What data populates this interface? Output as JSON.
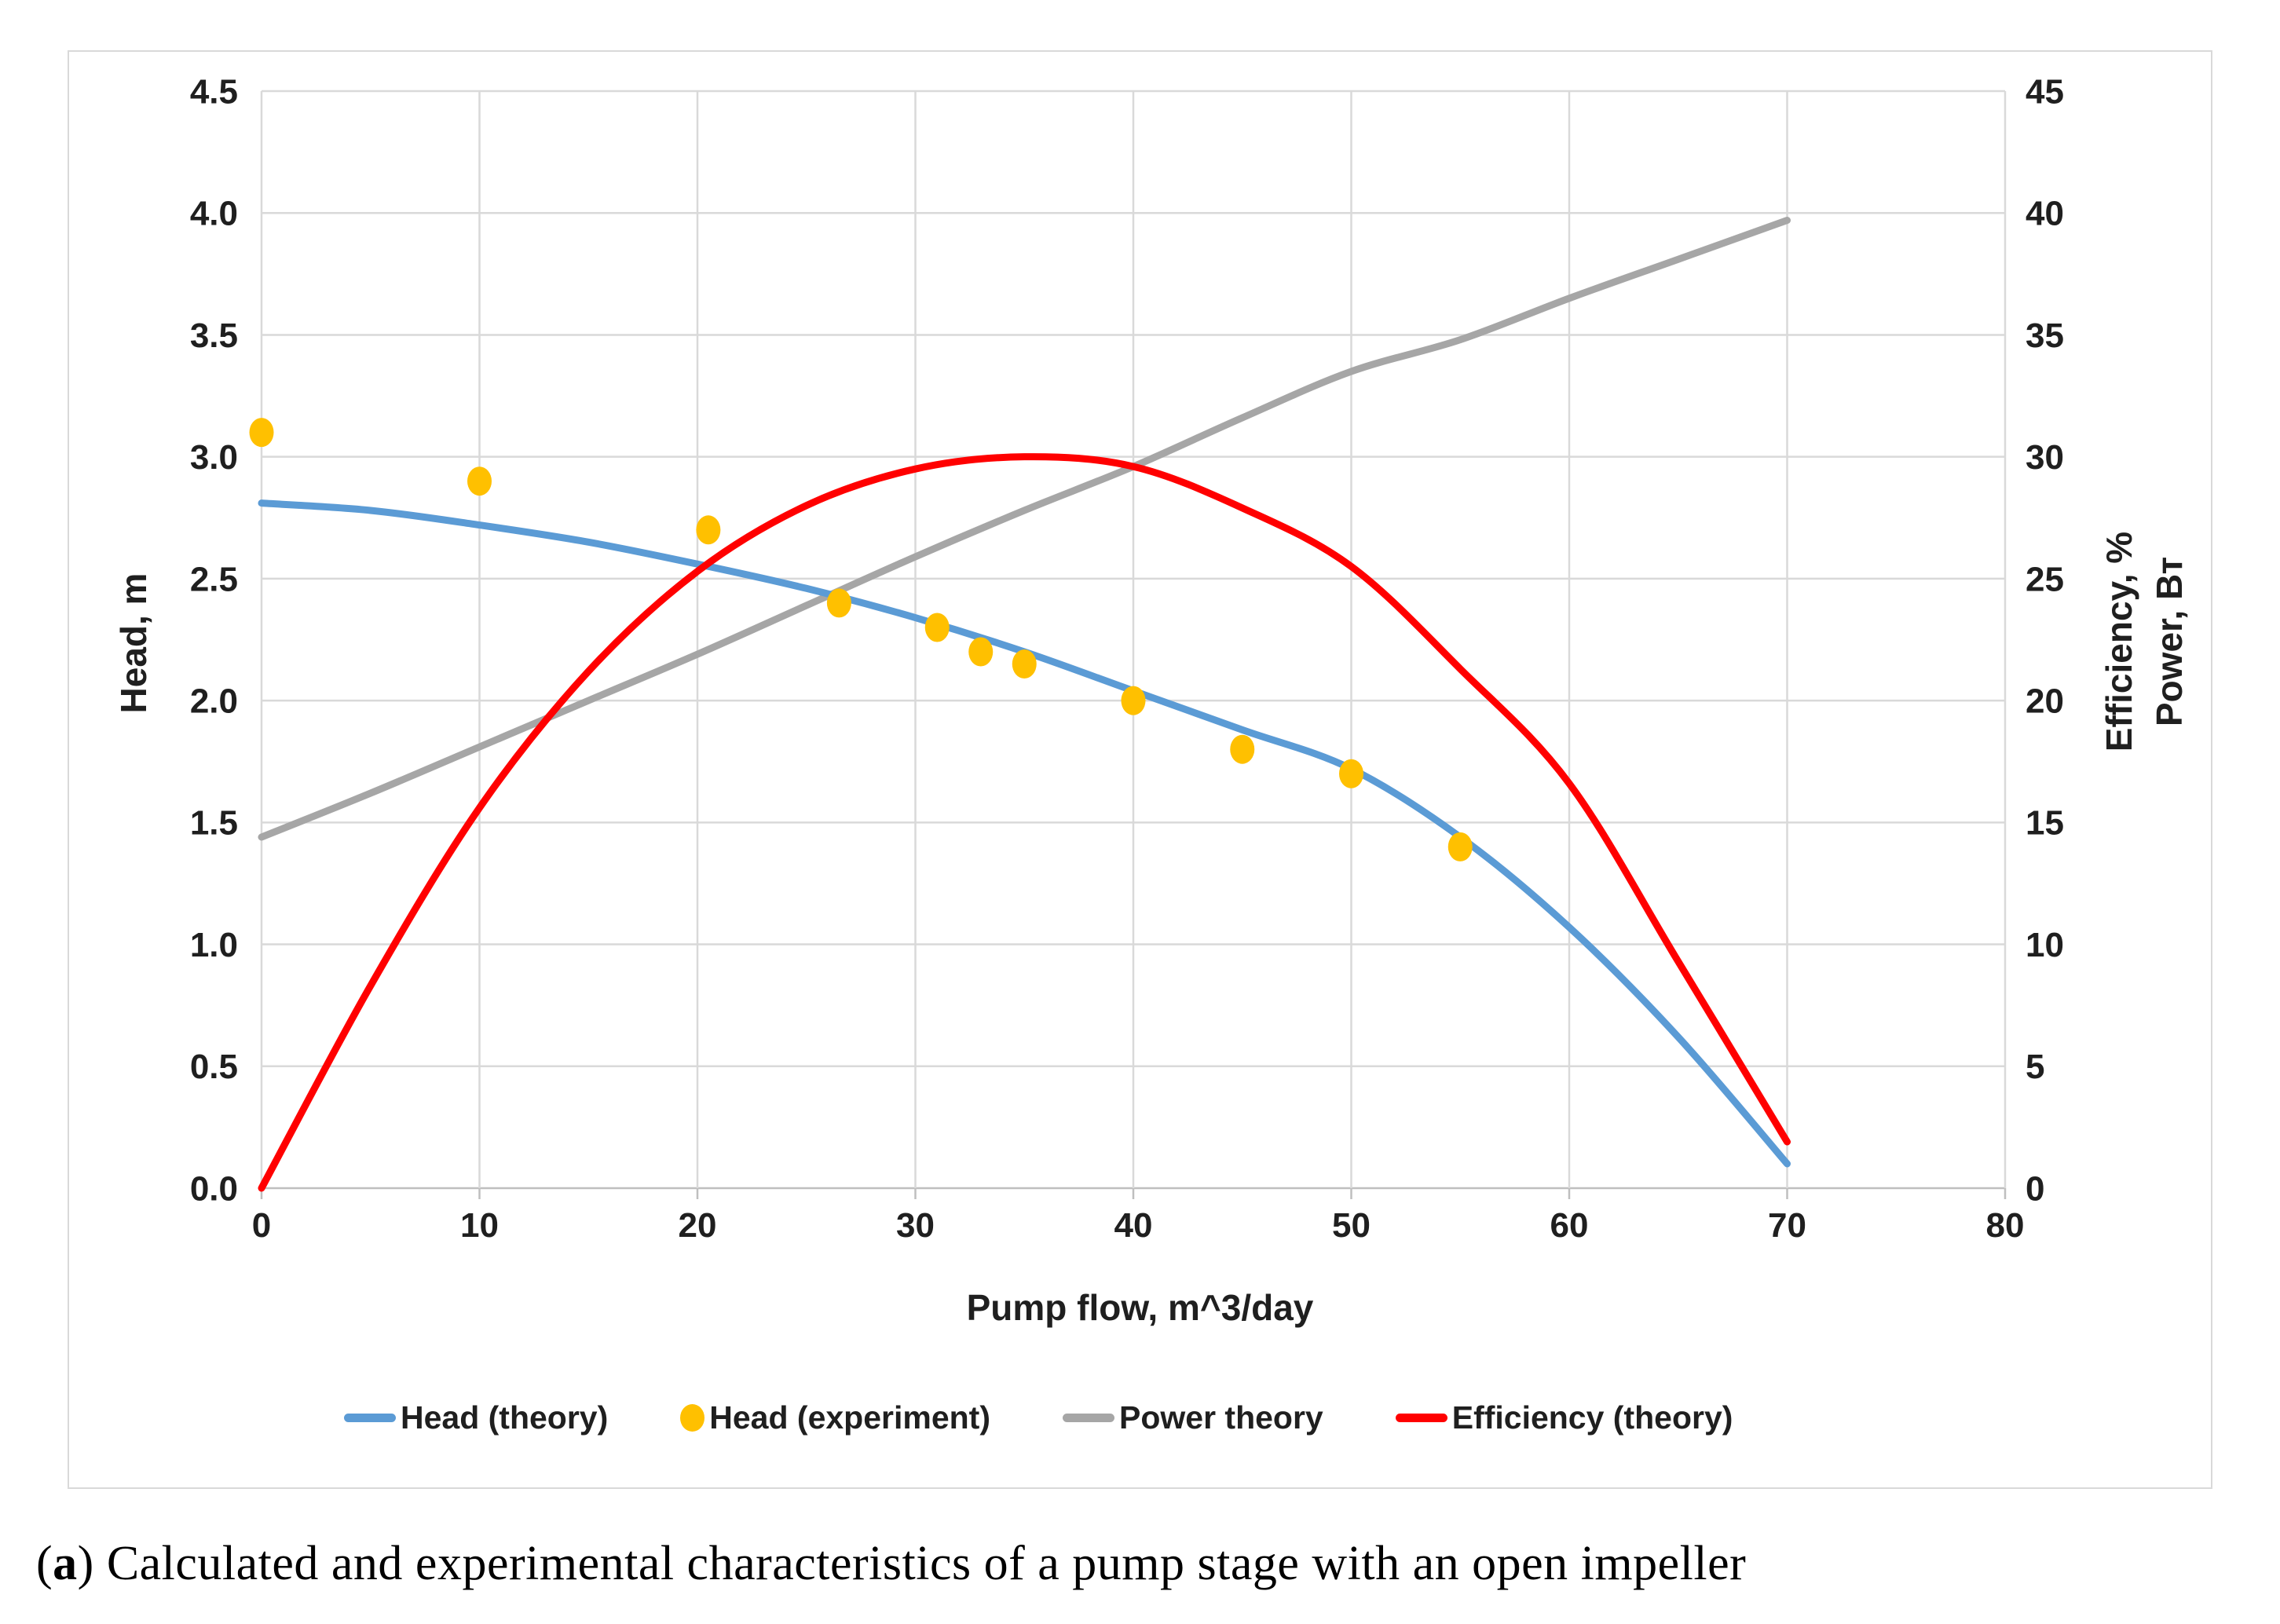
{
  "figure": {
    "caption_open": "(",
    "caption_index": "a",
    "caption_close": ") ",
    "caption_text": "Calculated and experimental characteristics of a pump stage with an open impeller"
  },
  "colors": {
    "grid": "#d9d9d9",
    "axis_line": "#bfbfbf",
    "tick_text": "#1f1f1f",
    "panel_border": "#d9d9d9",
    "head_theory": "#5B9BD5",
    "head_experiment": "#FFC000",
    "power_theory": "#A6A6A6",
    "efficiency_theory": "#FF0000"
  },
  "chart_data": {
    "type": "line",
    "title": "",
    "grid": true,
    "legend_position": "bottom",
    "x_axis": {
      "label": "Pump flow, m^3/day",
      "min": 0,
      "max": 80,
      "tick_labels": [
        "0",
        "10",
        "20",
        "30",
        "40",
        "50",
        "60",
        "70",
        "80"
      ]
    },
    "y_axis_left": {
      "label": "Head, m",
      "min": 0,
      "max": 4.5,
      "tick_labels": [
        "0.0",
        "0.5",
        "1.0",
        "1.5",
        "2.0",
        "2.5",
        "3.0",
        "3.5",
        "4.0",
        "4.5"
      ]
    },
    "y_axis_right": {
      "label_line1": "Efficiency, %",
      "label_line2": "Power, Вт",
      "min": 0,
      "max": 45,
      "tick_labels": [
        "0",
        "5",
        "10",
        "15",
        "20",
        "25",
        "30",
        "35",
        "40",
        "45"
      ]
    },
    "series": [
      {
        "name": "Head (theory)",
        "type": "line",
        "axis": "left",
        "color": "#5B9BD5",
        "x": [
          0,
          5,
          10,
          15,
          20,
          25,
          30,
          35,
          40,
          45,
          50,
          55,
          60,
          65,
          70
        ],
        "y": [
          2.81,
          2.78,
          2.72,
          2.65,
          2.56,
          2.46,
          2.34,
          2.2,
          2.04,
          1.88,
          1.72,
          1.44,
          1.07,
          0.62,
          0.1
        ]
      },
      {
        "name": "Head (experiment)",
        "type": "scatter",
        "axis": "left",
        "color": "#FFC000",
        "x": [
          0,
          10,
          20.5,
          26.5,
          31,
          33,
          35,
          40,
          45,
          50,
          55
        ],
        "y": [
          3.1,
          2.9,
          2.7,
          2.4,
          2.3,
          2.2,
          2.15,
          2.0,
          1.8,
          1.7,
          1.4
        ]
      },
      {
        "name": "Power theory",
        "type": "line",
        "axis": "right",
        "color": "#A6A6A6",
        "x": [
          0,
          5,
          10,
          15,
          20,
          25,
          30,
          35,
          40,
          45,
          50,
          55,
          60,
          65,
          70
        ],
        "y": [
          14.4,
          16.2,
          18.1,
          20.0,
          21.9,
          23.9,
          25.9,
          27.8,
          29.6,
          31.6,
          33.5,
          34.8,
          36.5,
          38.1,
          39.7
        ]
      },
      {
        "name": "Efficiency (theory)",
        "type": "line",
        "axis": "right",
        "color": "#FF0000",
        "x": [
          0,
          5,
          10,
          15,
          20,
          25,
          30,
          35,
          40,
          45,
          50,
          55,
          60,
          65,
          70
        ],
        "y": [
          0.0,
          8.3,
          15.6,
          21.2,
          25.3,
          28.0,
          29.5,
          30.0,
          29.6,
          27.9,
          25.5,
          21.3,
          16.6,
          9.3,
          1.9
        ]
      }
    ]
  }
}
